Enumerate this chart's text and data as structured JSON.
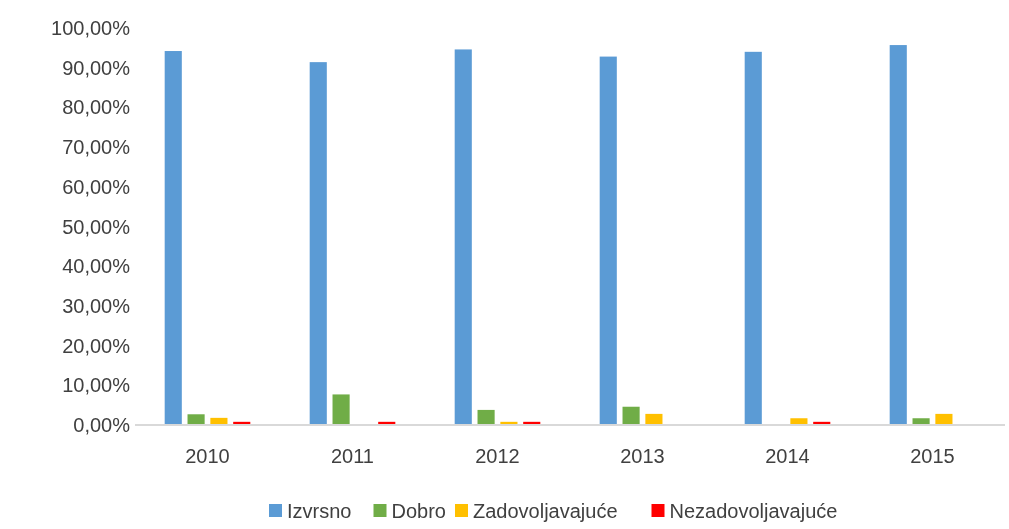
{
  "chart_data": {
    "type": "bar",
    "categories": [
      "2010",
      "2011",
      "2012",
      "2013",
      "2014",
      "2015"
    ],
    "series": [
      {
        "name": "Izvrsno",
        "color": "#5b9bd5",
        "values": [
          94.2,
          91.4,
          94.6,
          92.8,
          94,
          95.7
        ]
      },
      {
        "name": "Dobro",
        "color": "#70ad47",
        "values": [
          2.7,
          7.7,
          3.8,
          4.6,
          0,
          1.7
        ]
      },
      {
        "name": "Zadovoljavajuće",
        "color": "#ffc000",
        "values": [
          1.8,
          0,
          0.8,
          2.8,
          1.7,
          2.8
        ]
      },
      {
        "name": "Nezadovoljavajuće",
        "color": "#ff0000",
        "values": [
          0.8,
          0.8,
          0.8,
          0,
          0.8,
          0
        ]
      }
    ],
    "ylim": [
      0,
      100
    ],
    "yticks": [
      {
        "value": 0,
        "label": "0,00%"
      },
      {
        "value": 10,
        "label": "10,00%"
      },
      {
        "value": 20,
        "label": "20,00%"
      },
      {
        "value": 30,
        "label": "30,00%"
      },
      {
        "value": 40,
        "label": "40,00%"
      },
      {
        "value": 50,
        "label": "50,00%"
      },
      {
        "value": 60,
        "label": "60,00%"
      },
      {
        "value": 70,
        "label": "70,00%"
      },
      {
        "value": 80,
        "label": "80,00%"
      },
      {
        "value": 90,
        "label": "90,00%"
      },
      {
        "value": 100,
        "label": "100,00%"
      }
    ],
    "grid": false,
    "legend": "bottom"
  }
}
